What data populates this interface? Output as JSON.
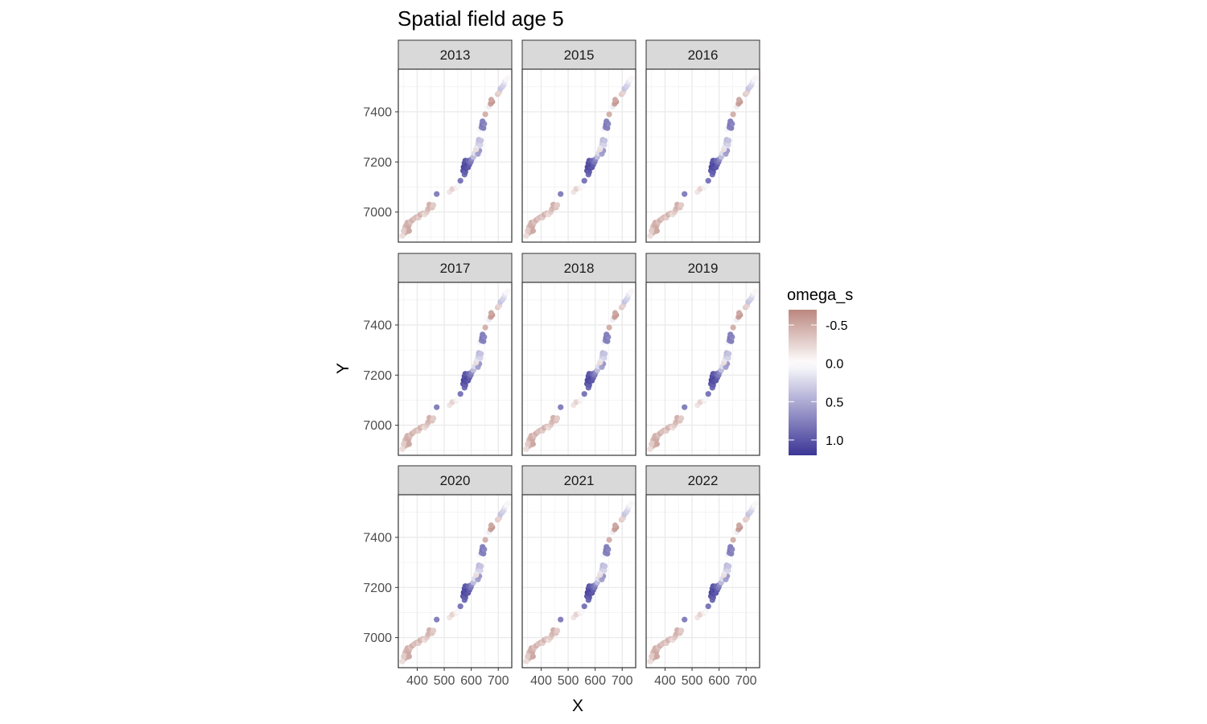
{
  "chart_data": {
    "type": "scatter",
    "title": "Spatial field age 5",
    "xlabel": "X",
    "ylabel": "Y",
    "xlim": [
      330,
      750
    ],
    "ylim": [
      6880,
      7570
    ],
    "xticks": [
      400,
      500,
      600,
      700
    ],
    "xtick_labels": [
      "400",
      "500",
      "600",
      "700"
    ],
    "yticks": [
      7000,
      7200,
      7400
    ],
    "ytick_labels": [
      "7000",
      "7200",
      "7400"
    ],
    "grid": true,
    "facets": [
      "2013",
      "2015",
      "2016",
      "2017",
      "2018",
      "2019",
      "2020",
      "2021",
      "2022"
    ],
    "colors": {
      "low": "#bb8780",
      "mid": "#ffffff",
      "high": "#3b3596"
    },
    "legend": {
      "title": "omega_s",
      "position": "right",
      "reversed": true,
      "range": [
        -0.7,
        1.2
      ],
      "breaks": [
        -0.5,
        0.0,
        0.5,
        1.0
      ],
      "break_labels": [
        "-0.5",
        "0.0",
        "0.5",
        "1.0"
      ]
    },
    "points": [
      {
        "x": 352,
        "y": 6915,
        "v": -0.4
      },
      {
        "x": 358,
        "y": 6930,
        "v": -0.5
      },
      {
        "x": 362,
        "y": 6922,
        "v": -0.45
      },
      {
        "x": 366,
        "y": 6935,
        "v": -0.4
      },
      {
        "x": 355,
        "y": 6940,
        "v": -0.35
      },
      {
        "x": 360,
        "y": 6948,
        "v": -0.45
      },
      {
        "x": 368,
        "y": 6945,
        "v": -0.5
      },
      {
        "x": 372,
        "y": 6955,
        "v": -0.4
      },
      {
        "x": 364,
        "y": 6958,
        "v": -0.45
      },
      {
        "x": 376,
        "y": 6962,
        "v": -0.35
      },
      {
        "x": 345,
        "y": 6905,
        "v": -0.2
      },
      {
        "x": 350,
        "y": 6925,
        "v": -0.3
      },
      {
        "x": 370,
        "y": 6925,
        "v": -0.5
      },
      {
        "x": 382,
        "y": 6968,
        "v": -0.45
      },
      {
        "x": 390,
        "y": 6975,
        "v": -0.35
      },
      {
        "x": 398,
        "y": 6980,
        "v": -0.4
      },
      {
        "x": 405,
        "y": 6978,
        "v": -0.3
      },
      {
        "x": 412,
        "y": 6990,
        "v": -0.45
      },
      {
        "x": 420,
        "y": 6995,
        "v": -0.35
      },
      {
        "x": 428,
        "y": 6990,
        "v": -0.2
      },
      {
        "x": 435,
        "y": 7000,
        "v": -0.3
      },
      {
        "x": 440,
        "y": 7012,
        "v": -0.4
      },
      {
        "x": 448,
        "y": 7022,
        "v": -0.5
      },
      {
        "x": 445,
        "y": 7030,
        "v": -0.45
      },
      {
        "x": 455,
        "y": 7018,
        "v": -0.35
      },
      {
        "x": 460,
        "y": 7028,
        "v": -0.3
      },
      {
        "x": 472,
        "y": 7072,
        "v": 0.75
      },
      {
        "x": 520,
        "y": 7080,
        "v": -0.15
      },
      {
        "x": 530,
        "y": 7092,
        "v": -0.25
      },
      {
        "x": 545,
        "y": 7098,
        "v": -0.1
      },
      {
        "x": 552,
        "y": 7105,
        "v": 0.05
      },
      {
        "x": 560,
        "y": 7125,
        "v": 0.8
      },
      {
        "x": 575,
        "y": 7150,
        "v": 0.85
      },
      {
        "x": 570,
        "y": 7165,
        "v": 1.0
      },
      {
        "x": 578,
        "y": 7160,
        "v": 0.95
      },
      {
        "x": 572,
        "y": 7180,
        "v": 1.1
      },
      {
        "x": 580,
        "y": 7175,
        "v": 1.05
      },
      {
        "x": 588,
        "y": 7178,
        "v": 1.0
      },
      {
        "x": 575,
        "y": 7195,
        "v": 1.05
      },
      {
        "x": 585,
        "y": 7192,
        "v": 1.1
      },
      {
        "x": 593,
        "y": 7190,
        "v": 0.95
      },
      {
        "x": 578,
        "y": 7205,
        "v": 1.0
      },
      {
        "x": 590,
        "y": 7205,
        "v": 0.9
      },
      {
        "x": 598,
        "y": 7200,
        "v": 0.8
      },
      {
        "x": 602,
        "y": 7212,
        "v": 0.7
      },
      {
        "x": 608,
        "y": 7220,
        "v": 0.4
      },
      {
        "x": 612,
        "y": 7235,
        "v": 0.2
      },
      {
        "x": 625,
        "y": 7232,
        "v": 0.55
      },
      {
        "x": 630,
        "y": 7245,
        "v": 0.6
      },
      {
        "x": 618,
        "y": 7250,
        "v": -0.2
      },
      {
        "x": 622,
        "y": 7262,
        "v": 0.15
      },
      {
        "x": 626,
        "y": 7275,
        "v": 0.3
      },
      {
        "x": 634,
        "y": 7268,
        "v": 0.25
      },
      {
        "x": 628,
        "y": 7288,
        "v": 0.4
      },
      {
        "x": 636,
        "y": 7285,
        "v": 0.35
      },
      {
        "x": 630,
        "y": 7330,
        "v": 0.05
      },
      {
        "x": 638,
        "y": 7338,
        "v": 0.7
      },
      {
        "x": 645,
        "y": 7335,
        "v": 0.75
      },
      {
        "x": 640,
        "y": 7350,
        "v": 0.8
      },
      {
        "x": 648,
        "y": 7352,
        "v": 0.7
      },
      {
        "x": 642,
        "y": 7362,
        "v": 0.75
      },
      {
        "x": 652,
        "y": 7390,
        "v": -0.45
      },
      {
        "x": 665,
        "y": 7420,
        "v": 0.1
      },
      {
        "x": 672,
        "y": 7432,
        "v": -0.55
      },
      {
        "x": 678,
        "y": 7440,
        "v": -0.6
      },
      {
        "x": 674,
        "y": 7448,
        "v": -0.5
      },
      {
        "x": 690,
        "y": 7462,
        "v": 0.0
      },
      {
        "x": 698,
        "y": 7470,
        "v": -0.3
      },
      {
        "x": 704,
        "y": 7478,
        "v": -0.25
      },
      {
        "x": 708,
        "y": 7492,
        "v": 0.35
      },
      {
        "x": 715,
        "y": 7500,
        "v": 0.3
      },
      {
        "x": 720,
        "y": 7508,
        "v": 0.25
      },
      {
        "x": 724,
        "y": 7520,
        "v": 0.15
      },
      {
        "x": 730,
        "y": 7528,
        "v": 0.05
      },
      {
        "x": 735,
        "y": 7535,
        "v": -0.05
      }
    ]
  }
}
